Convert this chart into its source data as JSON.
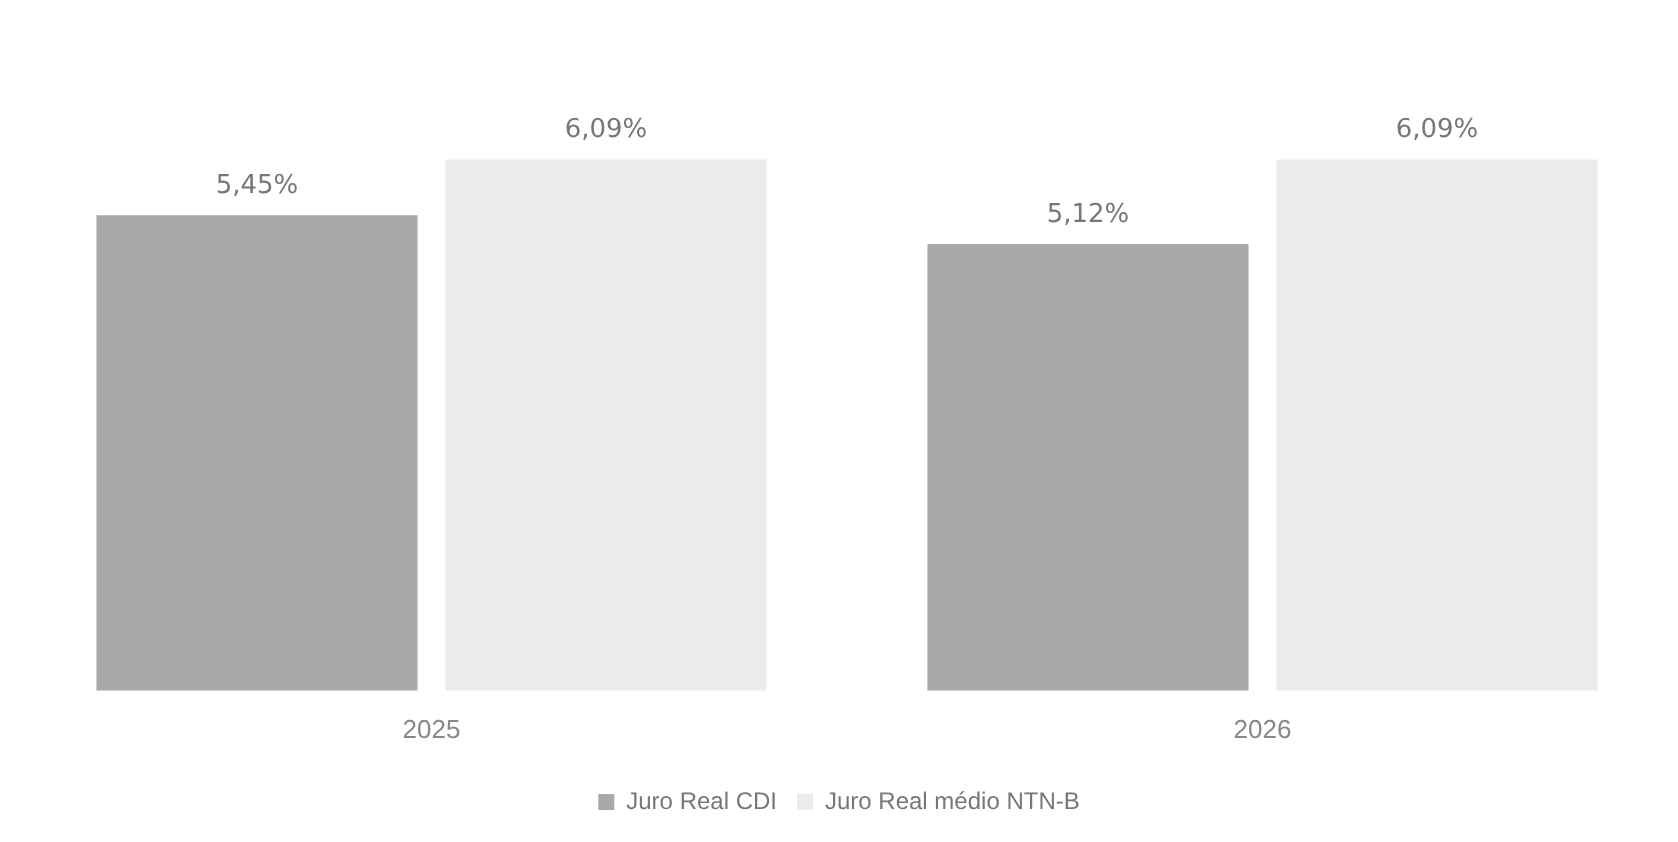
{
  "chart_data": {
    "type": "bar",
    "categories": [
      "2025",
      "2026"
    ],
    "legend": "bottom",
    "grid": false,
    "tick_labels": "x",
    "series": [
      {
        "name": "Juro Real CDI",
        "color": "#a9a9a9",
        "values": [
          5.45,
          5.12
        ],
        "value_labels": [
          "5,45%",
          "5,12%"
        ]
      },
      {
        "name": "Juro Real médio NTN-B",
        "color": "#ebebeb",
        "values": [
          6.09,
          6.09
        ],
        "value_labels": [
          "6,09%",
          "6,09%"
        ]
      }
    ]
  }
}
